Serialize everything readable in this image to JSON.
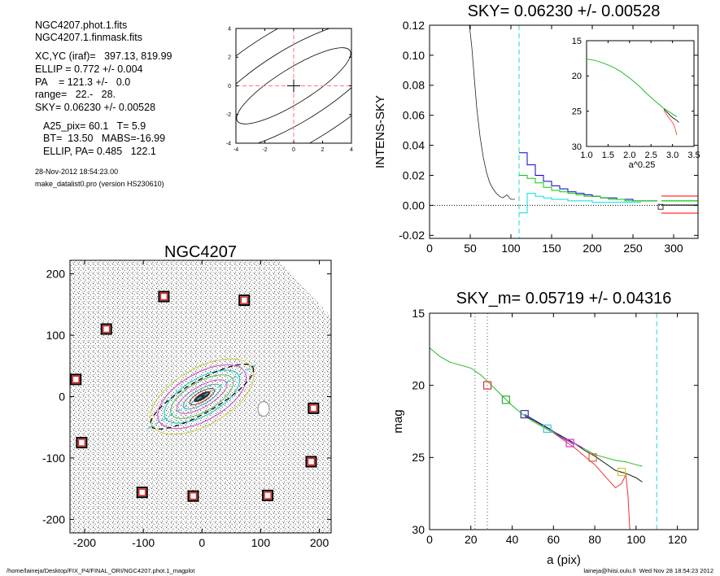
{
  "info": {
    "files": [
      "NGC4207.phot.1.fits",
      "NGC4207.1.finmask.fits"
    ],
    "params": [
      "XC,YC (iraf)=   397.13, 819.99",
      "ELLIP = 0.772 +/- 0.004",
      "PA    = 121.3 +/-   0.0",
      "range=   22.-   28.",
      "SKY= 0.06230 +/- 0.00528"
    ],
    "derived": [
      "A25_pix= 60.1   T= 5.9",
      "BT=  13.50   MABS=-16.99",
      "ELLIP, PA= 0.485   122.1"
    ],
    "date": "28-Nov-2012 18:54:23.00",
    "program": "make_datalist0.pro (version HS230610)"
  },
  "footer": {
    "path": "/home/laineja/Desktop/FIX_P4/FINAL_ORI/NGC4207.phot.1_magplot",
    "user": "laineja@hiisi.oulu.fi  Wed Nov 28 18:54:23 2012"
  },
  "chart_data": [
    {
      "id": "center-contour",
      "type": "line",
      "title": "",
      "xlim": [
        -4,
        4
      ],
      "ylim": [
        -4,
        4
      ],
      "xticks": [
        -4,
        -2,
        0,
        2,
        4
      ],
      "yticks": [
        -4,
        -2,
        0,
        2,
        4
      ],
      "contours": [
        {
          "a": 4.6,
          "b": 1.2
        },
        {
          "a": 7.5,
          "b": 2.5
        },
        {
          "a": 10.5,
          "b": 4.0
        }
      ],
      "angle_deg": 32,
      "colors": {
        "contour": "#000000",
        "crosshair": "#ff7777"
      }
    },
    {
      "id": "sky-profile",
      "type": "line",
      "title": "SKY= 0.06230 +/- 0.00528",
      "ylabel": "INTENS-SKY",
      "xlim": [
        0,
        330
      ],
      "ylim": [
        -0.022,
        0.12
      ],
      "xticks": [
        0,
        50,
        100,
        150,
        200,
        250,
        300
      ],
      "yticks": [
        "-0.02",
        "0.00",
        "0.02",
        "0.04",
        "0.06",
        "0.08",
        "0.10",
        "0.12"
      ],
      "ytick_values": [
        -0.02,
        0.0,
        0.02,
        0.04,
        0.06,
        0.08,
        0.1,
        0.12
      ],
      "sky_radius": 110,
      "profile": {
        "x": [
          49,
          52,
          55,
          58,
          62,
          66,
          70,
          74,
          78,
          82,
          86,
          90,
          95,
          100,
          105
        ],
        "y": [
          0.12,
          0.105,
          0.085,
          0.065,
          0.046,
          0.032,
          0.022,
          0.015,
          0.011,
          0.008,
          0.006,
          0.005,
          0.007,
          0.004,
          0.004
        ]
      },
      "steps": [
        {
          "color": "#0000cc",
          "x": [
            115,
            125,
            135,
            145,
            155,
            165,
            175,
            185,
            195,
            205,
            215,
            225,
            235,
            245,
            255,
            265,
            275
          ],
          "y": [
            0.035,
            0.027,
            0.02,
            0.016,
            0.013,
            0.011,
            0.009,
            0.008,
            0.007,
            0.006,
            0.005,
            0.005,
            0.004,
            0.004,
            0.003,
            0.003,
            0.003
          ]
        },
        {
          "color": "#00cc00",
          "x": [
            115,
            125,
            135,
            145,
            155,
            165,
            175,
            185,
            195,
            205,
            215,
            225,
            235,
            245,
            255,
            265,
            275
          ],
          "y": [
            0.02,
            0.018,
            0.015,
            0.012,
            0.01,
            0.009,
            0.008,
            0.007,
            0.006,
            0.006,
            0.005,
            0.004,
            0.004,
            0.003,
            0.003,
            0.003,
            0.003
          ]
        },
        {
          "color": "#00dddd",
          "x": [
            115,
            125,
            135,
            145,
            155,
            165,
            175,
            185,
            195,
            205,
            215,
            225,
            235,
            245,
            255
          ],
          "y": [
            -0.005,
            0.008,
            0.006,
            0.005,
            0.004,
            0.004,
            0.003,
            0.003,
            0.003,
            0.002,
            0.002,
            0.002,
            0.002,
            0.002,
            0.002
          ]
        }
      ],
      "right_lines": [
        {
          "color": "#ff3333",
          "y": 0.0062
        },
        {
          "color": "#00cc00",
          "y": 0.003
        },
        {
          "color": "#000000",
          "y": 0.0002
        },
        {
          "color": "#ff3333",
          "y": -0.0052
        }
      ],
      "sky_marker": {
        "x": 284,
        "y": -0.001
      },
      "inset": {
        "xlabel": "a^0.25",
        "xlim": [
          1.0,
          3.5
        ],
        "ylim": [
          15,
          30
        ],
        "xticks": [
          "1.0",
          "1.5",
          "2.0",
          "2.5",
          "3.0",
          "3.5"
        ],
        "xtick_values": [
          1.0,
          1.5,
          2.0,
          2.5,
          3.0,
          3.5
        ],
        "yticks": [
          15,
          20,
          25,
          30
        ],
        "green": {
          "x": [
            1.0,
            1.2,
            1.4,
            1.6,
            1.8,
            2.0,
            2.2,
            2.4,
            2.6,
            2.8,
            3.0,
            3.1
          ],
          "y": [
            17.6,
            17.8,
            18.2,
            18.7,
            19.4,
            20.3,
            21.3,
            22.5,
            23.6,
            24.6,
            25.4,
            25.8
          ]
        },
        "tails": [
          {
            "color": "#000000",
            "x": [
              2.8,
              2.9,
              3.0,
              3.1,
              3.15
            ],
            "y": [
              24.7,
              25.3,
              25.9,
              26.3,
              26.6
            ]
          },
          {
            "color": "#ff3333",
            "x": [
              2.8,
              2.9,
              3.0,
              3.05,
              3.1
            ],
            "y": [
              24.9,
              25.8,
              26.6,
              27.2,
              28.4
            ]
          }
        ]
      }
    },
    {
      "id": "galaxy-image",
      "type": "scatter",
      "title": "NGC4207",
      "xlim": [
        -225,
        220
      ],
      "ylim": [
        -222,
        222
      ],
      "xticks": [
        -200,
        -100,
        0,
        100,
        200
      ],
      "yticks": [
        -200,
        -100,
        0,
        100,
        200
      ],
      "stars": [
        {
          "x": -65,
          "y": 163
        },
        {
          "x": 72,
          "y": 157
        },
        {
          "x": -163,
          "y": 110
        },
        {
          "x": -215,
          "y": 28
        },
        {
          "x": 190,
          "y": -19
        },
        {
          "x": -205,
          "y": -75
        },
        {
          "x": 186,
          "y": -106
        },
        {
          "x": -102,
          "y": -156
        },
        {
          "x": -15,
          "y": -162
        },
        {
          "x": 112,
          "y": -161
        }
      ],
      "ellipse_angle_deg": 30,
      "isophotes": [
        {
          "a": 98,
          "b": 46,
          "color": "#cccc44"
        },
        {
          "a": 84,
          "b": 38,
          "color": "#cc44cc"
        },
        {
          "a": 72,
          "b": 30,
          "color": "#00cccc"
        },
        {
          "a": 60,
          "b": 24,
          "color": "#55bb55"
        },
        {
          "a": 48,
          "b": 17,
          "color": "#cc55cc"
        },
        {
          "a": 36,
          "b": 12,
          "color": "#33aaaa"
        },
        {
          "a": 24,
          "b": 8,
          "color": "#993333"
        },
        {
          "a": 14,
          "b": 4.5,
          "color": "#dd2222"
        }
      ],
      "fit_ellipse": {
        "a": 100,
        "b": 26
      }
    },
    {
      "id": "mag-profile",
      "type": "line",
      "title": "SKY_m=  0.05719 +/- 0.04316",
      "xlabel": "a (pix)",
      "ylabel": "mag",
      "xlim": [
        0,
        130
      ],
      "ylim": [
        15,
        30
      ],
      "xticks": [
        0,
        20,
        40,
        60,
        80,
        100,
        120
      ],
      "yticks": [
        15,
        20,
        25,
        30
      ],
      "dotted_x": [
        22,
        28
      ],
      "dashed_x": 110,
      "green": {
        "x": [
          0,
          5,
          10,
          15,
          20,
          25,
          30,
          35,
          40,
          45,
          50,
          55,
          60,
          65,
          70,
          75,
          80,
          85,
          90,
          95,
          100,
          103
        ],
        "y": [
          17.4,
          18.0,
          18.4,
          18.6,
          18.8,
          19.3,
          20.0,
          20.7,
          21.4,
          22.0,
          22.5,
          22.9,
          23.3,
          23.7,
          24.0,
          24.4,
          24.8,
          25.0,
          25.2,
          25.3,
          25.5,
          25.6
        ]
      },
      "black": {
        "x": [
          46,
          50,
          55,
          60,
          65,
          70,
          75,
          80,
          85,
          90,
          95,
          100,
          103
        ],
        "y": [
          22.1,
          22.4,
          22.8,
          23.2,
          23.6,
          24.0,
          24.5,
          24.9,
          25.4,
          25.9,
          26.1,
          26.4,
          26.7
        ]
      },
      "red": {
        "x": [
          60,
          65,
          70,
          75,
          80,
          85,
          90,
          93,
          95,
          96,
          97
        ],
        "y": [
          23.3,
          23.8,
          24.3,
          24.9,
          25.5,
          26.3,
          27.1,
          26.8,
          26.2,
          27.5,
          30.0
        ]
      },
      "blue": {
        "x": [
          46,
          52,
          58,
          64,
          70
        ],
        "y": [
          22.0,
          22.5,
          23.0,
          23.6,
          24.1
        ]
      },
      "magenta": {
        "x": [
          62,
          66,
          70,
          74
        ],
        "y": [
          23.5,
          23.8,
          24.0,
          24.3
        ]
      },
      "markers": [
        {
          "x": 28,
          "y": 20.0,
          "color": "#dd3333"
        },
        {
          "x": 37,
          "y": 21.0,
          "color": "#33aa33"
        },
        {
          "x": 46,
          "y": 22.0,
          "color": "#3333aa"
        },
        {
          "x": 57,
          "y": 23.0,
          "color": "#33cccc"
        },
        {
          "x": 68,
          "y": 24.0,
          "color": "#cc33cc"
        },
        {
          "x": 79,
          "y": 25.0,
          "color": "#dd6633"
        },
        {
          "x": 93,
          "y": 26.0,
          "color": "#cccc33"
        }
      ]
    }
  ]
}
